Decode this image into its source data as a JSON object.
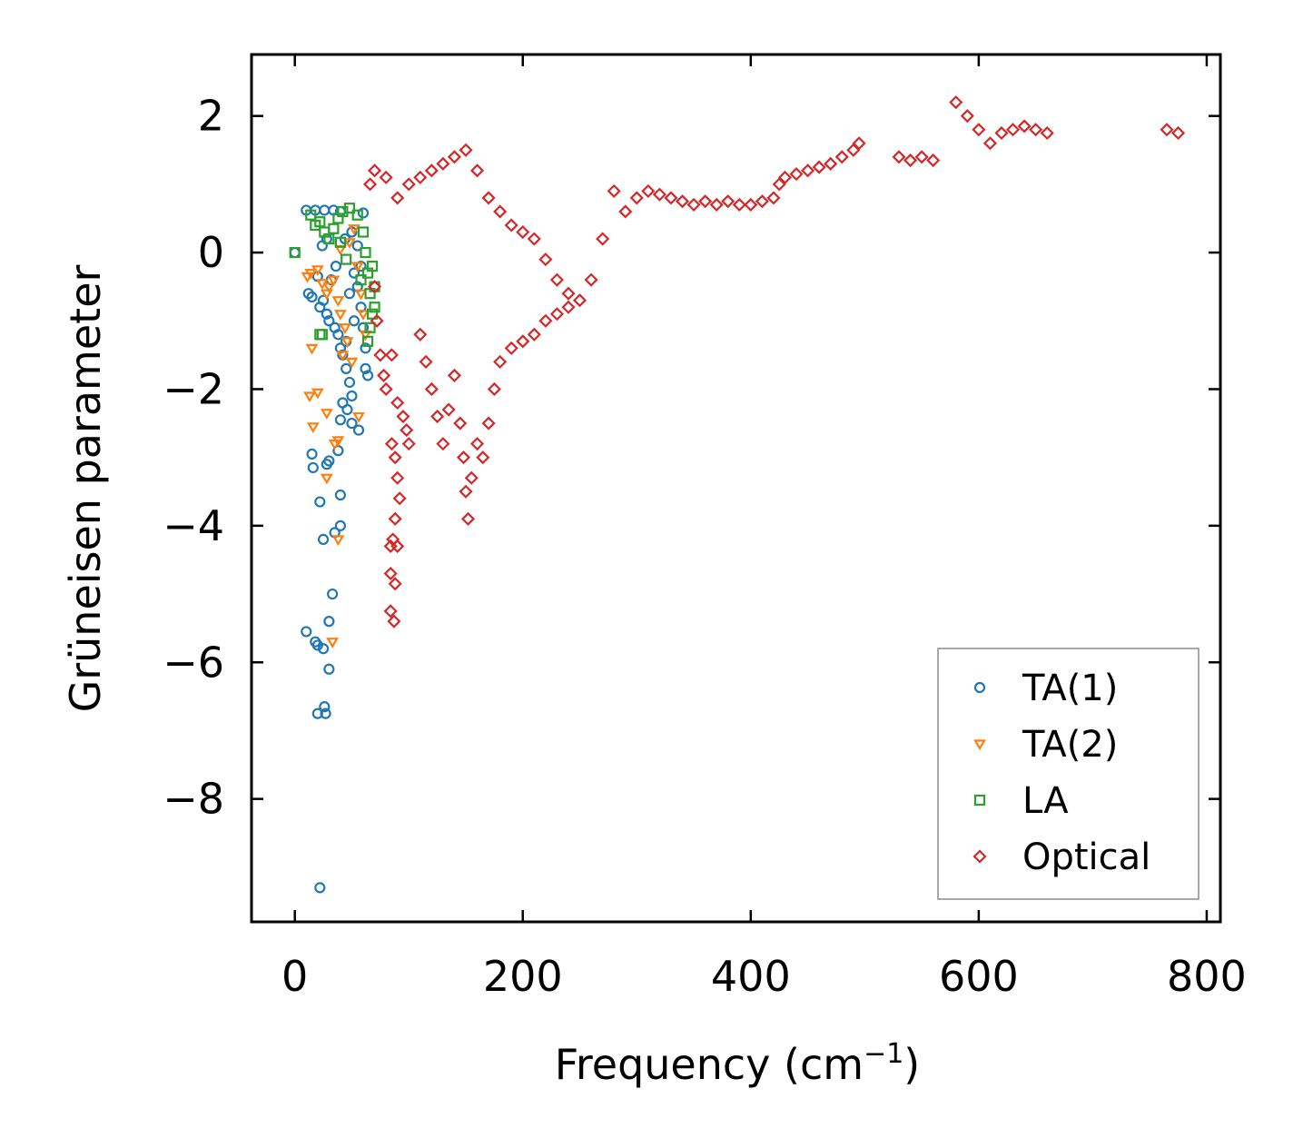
{
  "chart_data": {
    "type": "scatter",
    "title": "",
    "xlabel": "Frequency (cm",
    "xlabel_sup": "−1",
    "xlabel_close": ")",
    "ylabel": "Grüneisen parameter",
    "xlim": [
      -38,
      812
    ],
    "ylim": [
      -9.8,
      2.9
    ],
    "xticks": [
      0,
      200,
      400,
      600,
      800
    ],
    "xtick_labels": [
      "0",
      "200",
      "400",
      "600",
      "800"
    ],
    "yticks": [
      2,
      0,
      -2,
      -4,
      -6,
      -8
    ],
    "ytick_labels": [
      "2",
      "0",
      "−2",
      "−4",
      "−6",
      "−8"
    ],
    "legend_position": "lower-right",
    "grid": false,
    "series": [
      {
        "name": "TA(1)",
        "color": "#1f77b4",
        "marker": "circle",
        "points": [
          [
            0,
            0
          ],
          [
            10,
            0.62
          ],
          [
            18,
            0.62
          ],
          [
            26,
            0.62
          ],
          [
            34,
            0.62
          ],
          [
            40,
            0.6
          ],
          [
            60,
            0.58
          ],
          [
            12,
            -0.6
          ],
          [
            15,
            -0.65
          ],
          [
            20,
            -0.35
          ],
          [
            25,
            -0.7
          ],
          [
            22,
            -0.8
          ],
          [
            28,
            -0.9
          ],
          [
            30,
            -1.0
          ],
          [
            35,
            -1.1
          ],
          [
            38,
            -1.2
          ],
          [
            40,
            -1.4
          ],
          [
            42,
            -1.5
          ],
          [
            45,
            -1.7
          ],
          [
            48,
            -1.9
          ],
          [
            50,
            -2.1
          ],
          [
            42,
            -2.2
          ],
          [
            46,
            -2.3
          ],
          [
            40,
            -2.45
          ],
          [
            38,
            -2.9
          ],
          [
            30,
            -3.05
          ],
          [
            28,
            -3.1
          ],
          [
            15,
            -2.95
          ],
          [
            16,
            -3.15
          ],
          [
            22,
            -3.65
          ],
          [
            40,
            -3.55
          ],
          [
            25,
            -4.2
          ],
          [
            35,
            -4.1
          ],
          [
            40,
            -4.0
          ],
          [
            33,
            -5.0
          ],
          [
            30,
            -5.4
          ],
          [
            10,
            -5.55
          ],
          [
            18,
            -5.7
          ],
          [
            20,
            -5.75
          ],
          [
            25,
            -5.8
          ],
          [
            30,
            -6.1
          ],
          [
            20,
            -6.75
          ],
          [
            27,
            -6.75
          ],
          [
            26,
            -6.65
          ],
          [
            22,
            -9.3
          ],
          [
            52,
            -0.3
          ],
          [
            55,
            -0.5
          ],
          [
            58,
            -0.8
          ],
          [
            60,
            -1.1
          ],
          [
            62,
            -1.4
          ],
          [
            64,
            -1.8
          ],
          [
            50,
            0.3
          ],
          [
            55,
            0.1
          ],
          [
            58,
            -0.2
          ],
          [
            48,
            -0.6
          ],
          [
            52,
            -1.0
          ],
          [
            45,
            -1.3
          ],
          [
            56,
            -2.6
          ],
          [
            50,
            -2.5
          ],
          [
            62,
            -1.7
          ],
          [
            36,
            -0.2
          ],
          [
            32,
            -0.4
          ],
          [
            44,
            0.2
          ],
          [
            28,
            0.2
          ],
          [
            24,
            0.1
          ]
        ]
      },
      {
        "name": "TA(2)",
        "color": "#ff7f0e",
        "marker": "triangle-down",
        "points": [
          [
            11,
            -0.35
          ],
          [
            14,
            -0.3
          ],
          [
            20,
            -0.25
          ],
          [
            24,
            -0.45
          ],
          [
            28,
            -0.6
          ],
          [
            30,
            -0.5
          ],
          [
            34,
            -0.4
          ],
          [
            38,
            -0.7
          ],
          [
            40,
            -0.9
          ],
          [
            44,
            -1.1
          ],
          [
            46,
            -1.3
          ],
          [
            42,
            -1.5
          ],
          [
            15,
            -1.4
          ],
          [
            13,
            -2.1
          ],
          [
            20,
            -2.05
          ],
          [
            16,
            -2.55
          ],
          [
            28,
            -2.35
          ],
          [
            35,
            -2.8
          ],
          [
            38,
            -2.75
          ],
          [
            28,
            -3.3
          ],
          [
            38,
            -4.2
          ],
          [
            33,
            -5.7
          ],
          [
            55,
            -0.2
          ],
          [
            58,
            -0.6
          ],
          [
            60,
            -0.9
          ],
          [
            62,
            -1.2
          ],
          [
            50,
            -1.6
          ],
          [
            56,
            -2.4
          ],
          [
            48,
            0.15
          ],
          [
            52,
            0.35
          ],
          [
            40,
            0.05
          ]
        ]
      },
      {
        "name": "LA",
        "color": "#2ca02c",
        "marker": "square",
        "points": [
          [
            0,
            0
          ],
          [
            14,
            0.55
          ],
          [
            18,
            0.4
          ],
          [
            22,
            0.45
          ],
          [
            26,
            0.3
          ],
          [
            30,
            0.2
          ],
          [
            34,
            0.35
          ],
          [
            38,
            0.5
          ],
          [
            42,
            0.6
          ],
          [
            48,
            0.65
          ],
          [
            55,
            0.55
          ],
          [
            22,
            -1.2
          ],
          [
            24,
            -1.2
          ],
          [
            60,
            0.3
          ],
          [
            62,
            0.0
          ],
          [
            64,
            -0.3
          ],
          [
            66,
            -0.6
          ],
          [
            68,
            -0.9
          ],
          [
            70,
            -0.5
          ],
          [
            70,
            -0.8
          ],
          [
            68,
            -0.2
          ],
          [
            66,
            -1.1
          ],
          [
            64,
            -1.3
          ],
          [
            58,
            -0.4
          ],
          [
            45,
            -0.1
          ],
          [
            40,
            0.15
          ]
        ]
      },
      {
        "name": "Optical",
        "color": "#d62728",
        "marker": "diamond",
        "points": [
          [
            66,
            1.0
          ],
          [
            70,
            1.2
          ],
          [
            80,
            1.1
          ],
          [
            90,
            0.8
          ],
          [
            100,
            1.0
          ],
          [
            110,
            1.1
          ],
          [
            120,
            1.2
          ],
          [
            130,
            1.3
          ],
          [
            140,
            1.4
          ],
          [
            150,
            1.5
          ],
          [
            160,
            1.2
          ],
          [
            170,
            0.8
          ],
          [
            180,
            0.6
          ],
          [
            190,
            0.4
          ],
          [
            200,
            0.3
          ],
          [
            210,
            0.2
          ],
          [
            220,
            -0.1
          ],
          [
            230,
            -0.4
          ],
          [
            240,
            -0.6
          ],
          [
            260,
            -0.4
          ],
          [
            270,
            0.2
          ],
          [
            280,
            0.9
          ],
          [
            290,
            0.6
          ],
          [
            300,
            0.8
          ],
          [
            310,
            0.9
          ],
          [
            320,
            0.85
          ],
          [
            330,
            0.8
          ],
          [
            340,
            0.75
          ],
          [
            350,
            0.7
          ],
          [
            360,
            0.75
          ],
          [
            370,
            0.7
          ],
          [
            380,
            0.75
          ],
          [
            390,
            0.7
          ],
          [
            400,
            0.7
          ],
          [
            410,
            0.75
          ],
          [
            420,
            0.8
          ],
          [
            425,
            1.0
          ],
          [
            430,
            1.1
          ],
          [
            440,
            1.15
          ],
          [
            450,
            1.2
          ],
          [
            460,
            1.25
          ],
          [
            470,
            1.3
          ],
          [
            480,
            1.4
          ],
          [
            490,
            1.5
          ],
          [
            495,
            1.6
          ],
          [
            530,
            1.4
          ],
          [
            540,
            1.35
          ],
          [
            550,
            1.4
          ],
          [
            560,
            1.35
          ],
          [
            580,
            2.2
          ],
          [
            590,
            2.0
          ],
          [
            600,
            1.8
          ],
          [
            610,
            1.6
          ],
          [
            620,
            1.75
          ],
          [
            630,
            1.8
          ],
          [
            640,
            1.85
          ],
          [
            650,
            1.8
          ],
          [
            660,
            1.75
          ],
          [
            765,
            1.8
          ],
          [
            775,
            1.75
          ],
          [
            70,
            -0.5
          ],
          [
            72,
            -1.0
          ],
          [
            75,
            -1.5
          ],
          [
            78,
            -1.8
          ],
          [
            80,
            -2.0
          ],
          [
            85,
            -1.5
          ],
          [
            90,
            -2.2
          ],
          [
            95,
            -2.4
          ],
          [
            98,
            -2.6
          ],
          [
            100,
            -2.8
          ],
          [
            85,
            -2.8
          ],
          [
            88,
            -3.0
          ],
          [
            90,
            -3.3
          ],
          [
            92,
            -3.6
          ],
          [
            88,
            -3.9
          ],
          [
            86,
            -4.2
          ],
          [
            84,
            -4.3
          ],
          [
            90,
            -4.3
          ],
          [
            84,
            -4.7
          ],
          [
            88,
            -4.85
          ],
          [
            84,
            -5.25
          ],
          [
            87,
            -5.4
          ],
          [
            110,
            -1.2
          ],
          [
            115,
            -1.6
          ],
          [
            120,
            -2.0
          ],
          [
            125,
            -2.4
          ],
          [
            130,
            -2.8
          ],
          [
            135,
            -2.3
          ],
          [
            140,
            -1.8
          ],
          [
            145,
            -2.5
          ],
          [
            148,
            -3.0
          ],
          [
            150,
            -3.5
          ],
          [
            152,
            -3.9
          ],
          [
            155,
            -3.3
          ],
          [
            160,
            -2.8
          ],
          [
            165,
            -3.0
          ],
          [
            170,
            -2.5
          ],
          [
            175,
            -2.0
          ],
          [
            180,
            -1.6
          ],
          [
            190,
            -1.4
          ],
          [
            200,
            -1.3
          ],
          [
            210,
            -1.2
          ],
          [
            220,
            -1.0
          ],
          [
            230,
            -0.9
          ],
          [
            240,
            -0.8
          ],
          [
            250,
            -0.7
          ]
        ]
      }
    ]
  }
}
